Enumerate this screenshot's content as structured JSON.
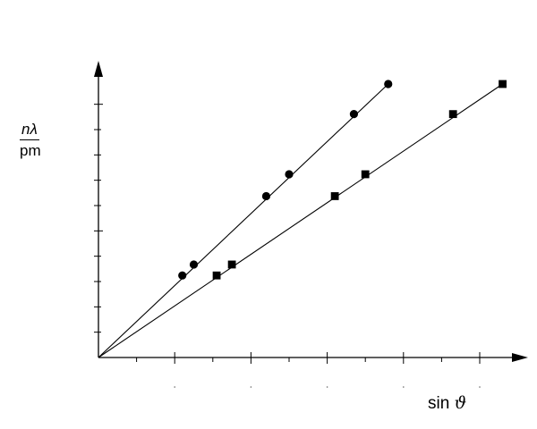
{
  "chart_data": {
    "type": "scatter",
    "ylabel": {
      "numerator_n": "n",
      "numerator_lambda": "λ",
      "denominator": "pm"
    },
    "xlabel": {
      "text": "sin",
      "symbol": "ϑ"
    },
    "xlim": [
      0,
      1.05
    ],
    "ylim": [
      0,
      1.08
    ],
    "grid": false,
    "legend": "none",
    "series": [
      {
        "marker": "circle",
        "x": [
          0.22,
          0.25,
          0.44,
          0.5,
          0.67,
          0.76
        ],
        "y": [
          0.3,
          0.34,
          0.59,
          0.67,
          0.89,
          1.0
        ]
      },
      {
        "marker": "square",
        "x": [
          0.31,
          0.35,
          0.62,
          0.7,
          0.93,
          1.06
        ],
        "y": [
          0.3,
          0.34,
          0.59,
          0.67,
          0.89,
          1.0
        ]
      }
    ],
    "fit_lines": [
      {
        "from": [
          0,
          0
        ],
        "to": [
          0.76,
          1.0
        ]
      },
      {
        "from": [
          0,
          0
        ],
        "to": [
          1.06,
          1.0
        ]
      }
    ],
    "x_ticks": [
      0.1,
      0.2,
      0.3,
      0.4,
      0.5,
      0.6,
      0.7,
      0.8,
      0.9,
      1.0
    ],
    "y_ticks": [
      0.1,
      0.2,
      0.3,
      0.4,
      0.5,
      0.6,
      0.7,
      0.8,
      0.9,
      1.0
    ]
  }
}
